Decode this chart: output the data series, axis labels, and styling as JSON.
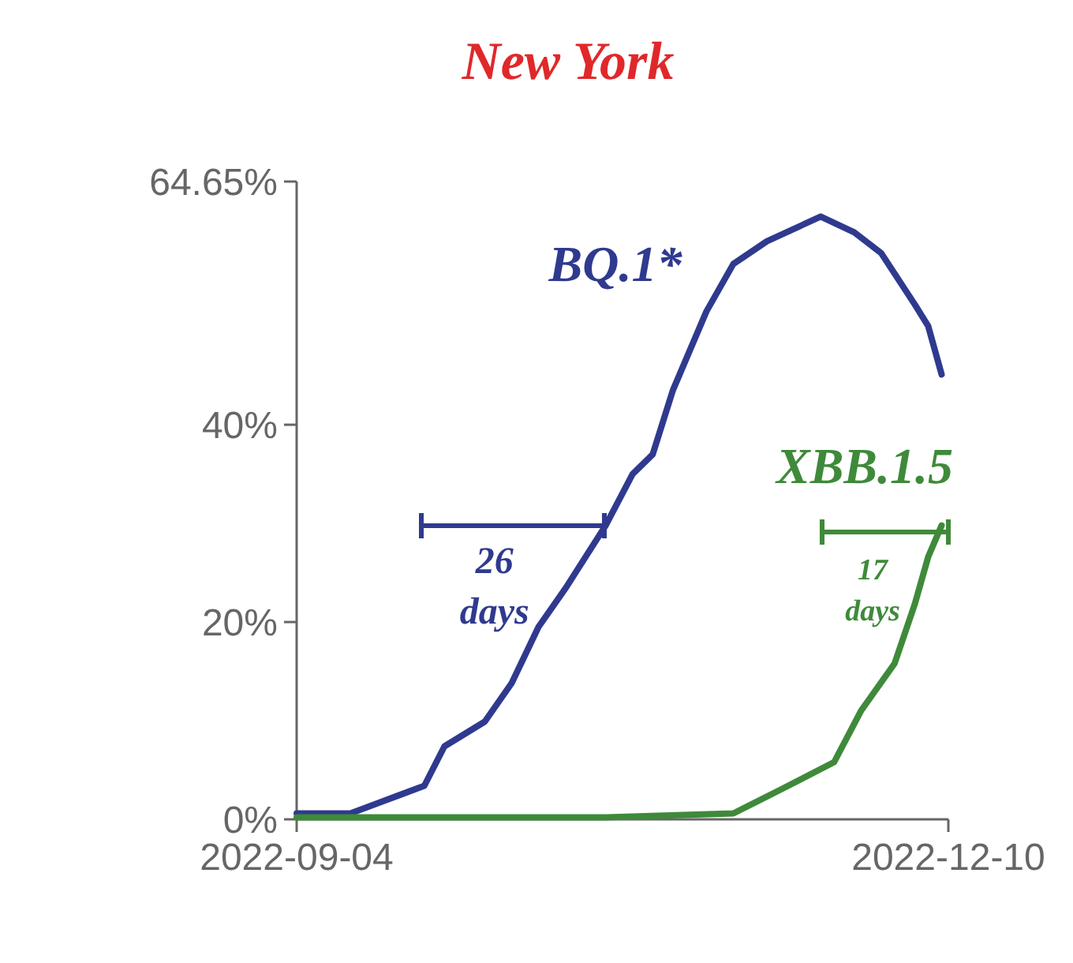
{
  "chart_data": {
    "type": "line",
    "title": "New York",
    "xlim": [
      "2022-09-04",
      "2022-12-10"
    ],
    "xticks": [
      "2022-09-04",
      "2022-12-10"
    ],
    "ylim": [
      0,
      64.65
    ],
    "yticks": [
      {
        "value": 0,
        "label": "0%"
      },
      {
        "value": 20,
        "label": "20%"
      },
      {
        "value": 40,
        "label": "40%"
      },
      {
        "value": 64.65,
        "label": "64.65%"
      }
    ],
    "grid": false,
    "marker": "none",
    "line_style": "solid",
    "series": [
      {
        "name": "BQ.1*",
        "color": "#2f3a8f",
        "x": [
          "2022-09-04",
          "2022-09-12",
          "2022-09-23",
          "2022-09-26",
          "2022-10-02",
          "2022-10-06",
          "2022-10-10",
          "2022-10-14",
          "2022-10-20",
          "2022-10-24",
          "2022-10-27",
          "2022-10-30",
          "2022-11-04",
          "2022-11-08",
          "2022-11-13",
          "2022-11-21",
          "2022-11-26",
          "2022-11-30",
          "2022-12-05",
          "2022-12-07",
          "2022-12-09"
        ],
        "values": [
          0.6,
          0.6,
          3.4,
          7.4,
          9.9,
          13.8,
          19.5,
          23.4,
          29.8,
          35,
          37,
          43.5,
          51.5,
          56.3,
          58.6,
          61.1,
          59.5,
          57.4,
          52.2,
          50,
          45.1
        ]
      },
      {
        "name": "XBB.1.5",
        "color": "#3f8a3a",
        "x": [
          "2022-09-04",
          "2022-10-20",
          "2022-11-08",
          "2022-11-15",
          "2022-11-23",
          "2022-11-27",
          "2022-12-02",
          "2022-12-05",
          "2022-12-07",
          "2022-12-09"
        ],
        "values": [
          0.2,
          0.2,
          0.6,
          3,
          5.8,
          11,
          15.8,
          21.8,
          26.6,
          29.8
        ]
      }
    ],
    "annotations": [
      "26 days",
      "17 days"
    ]
  }
}
